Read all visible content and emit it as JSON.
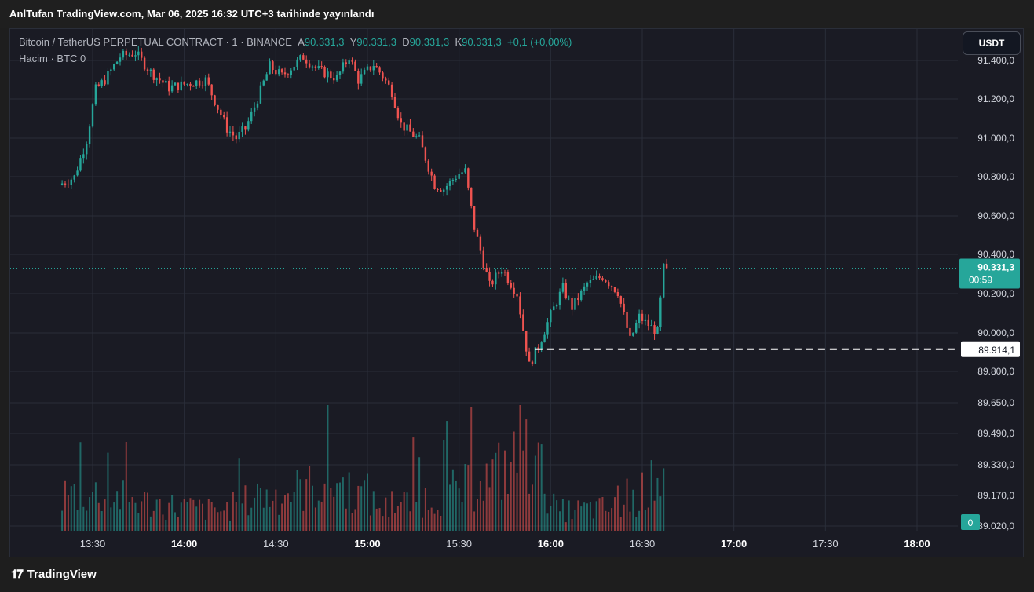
{
  "publish_text": "AnlTufan TradingView.com, Mar 06, 2025 16:32 UTC+3 tarihinde yayınlandı",
  "legend": {
    "symbol": "Bitcoin / TetherUS PERPETUAL CONTRACT · 1 · BINANCE",
    "open_label": "A",
    "open_value": "90.331,3",
    "high_label": "Y",
    "high_value": "90.331,3",
    "low_label": "D",
    "low_value": "90.331,3",
    "close_label": "K",
    "close_value": "90.331,3",
    "change": "+0,1 (+0,00%)",
    "volume_label": "Hacim · BTC",
    "volume_value": "0"
  },
  "currency_button": "USDT",
  "brand": "TradingView",
  "colors": {
    "up": "#26a69a",
    "down": "#ef5350",
    "background": "#1a1b24",
    "grid": "#2a2e39"
  },
  "chart_data": {
    "type": "candlestick",
    "symbol": "BTCUSDT.P",
    "x_ticks": [
      {
        "t": "13:30",
        "bold": false
      },
      {
        "t": "14:00",
        "bold": true
      },
      {
        "t": "14:30",
        "bold": false
      },
      {
        "t": "15:00",
        "bold": true
      },
      {
        "t": "15:30",
        "bold": false
      },
      {
        "t": "16:00",
        "bold": true
      },
      {
        "t": "16:30",
        "bold": false
      },
      {
        "t": "17:00",
        "bold": true
      },
      {
        "t": "17:30",
        "bold": false
      },
      {
        "t": "18:00",
        "bold": true
      }
    ],
    "y_ticks": [
      "91.400,0",
      "91.200,0",
      "91.000,0",
      "90.800,0",
      "90.600,0",
      "90.400,0",
      "90.200,0",
      "90.000,0",
      "89.800,0",
      "89.650,0",
      "89.490,0",
      "89.330,0",
      "89.170,0",
      "89.020,0"
    ],
    "price_range": [
      89800,
      91450
    ],
    "x_range_minutes": [
      800,
      1110
    ],
    "last_price": 90331.3,
    "last_price_label": "90.331,3",
    "countdown": "00:59",
    "level_price": 89914.1,
    "level_label": "89.914,1",
    "volume_badge": "0",
    "anchors": [
      [
        800,
        90760
      ],
      [
        805,
        90800
      ],
      [
        809,
        90990
      ],
      [
        812,
        91250
      ],
      [
        815,
        91300
      ],
      [
        820,
        91420
      ],
      [
        825,
        91440
      ],
      [
        830,
        91340
      ],
      [
        836,
        91260
      ],
      [
        842,
        91280
      ],
      [
        848,
        91300
      ],
      [
        855,
        91050
      ],
      [
        858,
        91000
      ],
      [
        861,
        91050
      ],
      [
        863,
        91120
      ],
      [
        869,
        91370
      ],
      [
        873,
        91320
      ],
      [
        880,
        91420
      ],
      [
        885,
        91350
      ],
      [
        891,
        91310
      ],
      [
        895,
        91420
      ],
      [
        898,
        91300
      ],
      [
        903,
        91380
      ],
      [
        906,
        91320
      ],
      [
        909,
        91240
      ],
      [
        912,
        91070
      ],
      [
        918,
        90990
      ],
      [
        923,
        90760
      ],
      [
        926,
        90740
      ],
      [
        931,
        90820
      ],
      [
        933,
        90830
      ],
      [
        936,
        90540
      ],
      [
        941,
        90240
      ],
      [
        945,
        90330
      ],
      [
        950,
        90200
      ],
      [
        954,
        89830
      ],
      [
        957,
        89930
      ],
      [
        961,
        90090
      ],
      [
        965,
        90230
      ],
      [
        968,
        90130
      ],
      [
        973,
        90250
      ],
      [
        978,
        90290
      ],
      [
        983,
        90210
      ],
      [
        987,
        89960
      ],
      [
        990,
        90080
      ],
      [
        993,
        90040
      ],
      [
        996,
        90000
      ],
      [
        998,
        90331
      ]
    ],
    "volume_anchors": [
      [
        812,
        75
      ],
      [
        830,
        55
      ],
      [
        852,
        40
      ],
      [
        860,
        60
      ],
      [
        890,
        100
      ],
      [
        905,
        45
      ],
      [
        935,
        90
      ],
      [
        954,
        160
      ],
      [
        962,
        40
      ],
      [
        985,
        48
      ],
      [
        997,
        115
      ],
      [
        998,
        0
      ]
    ]
  }
}
